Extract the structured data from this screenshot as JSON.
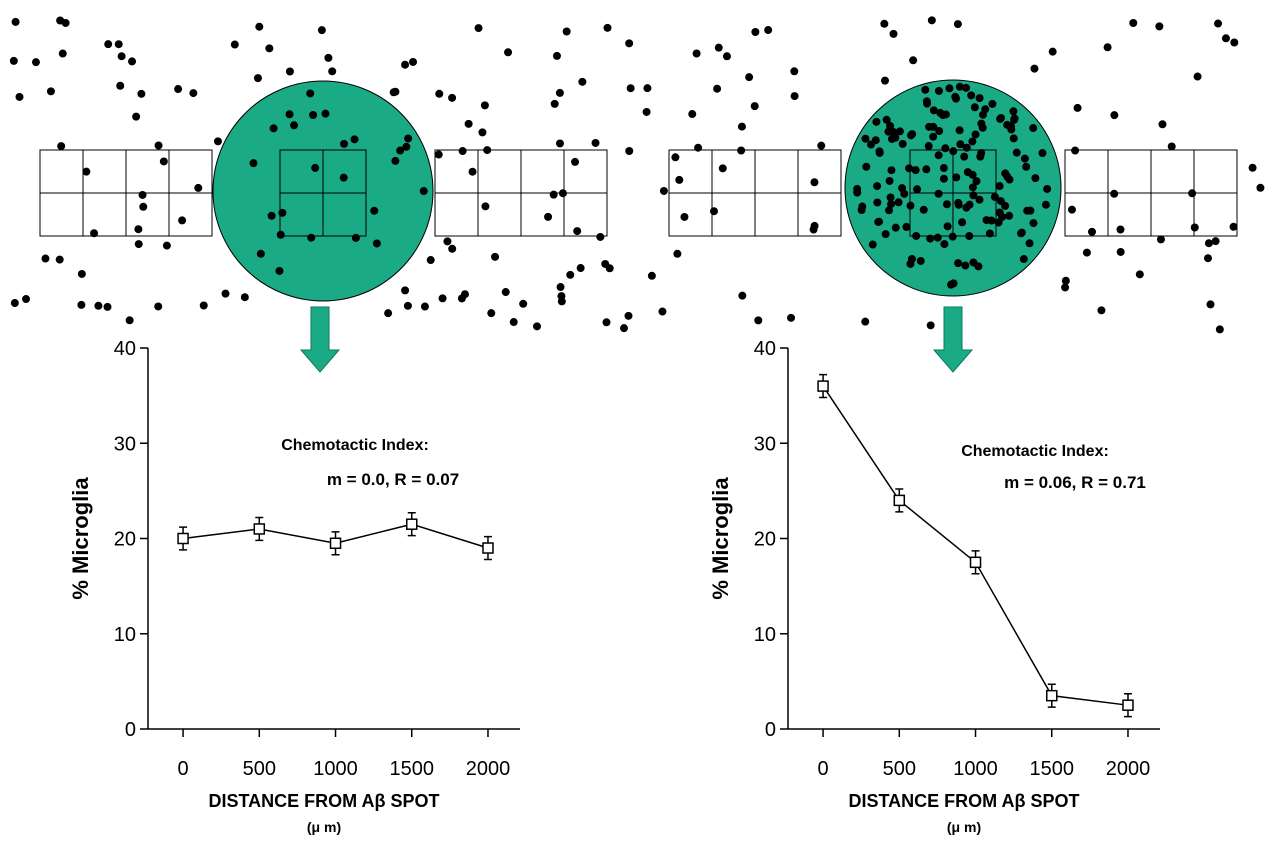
{
  "chart_data": [
    {
      "type": "line",
      "y_label": "% Microglia",
      "x_label": "DISTANCE FROM Aβ SPOT",
      "x_unit": "(μ m)",
      "annotation": [
        "Chemotactic Index:",
        "m = 0.0, R = 0.07"
      ],
      "x": [
        0,
        500,
        1000,
        1500,
        2000
      ],
      "values": [
        20,
        21,
        19.5,
        21.5,
        19
      ],
      "errors": [
        1.2,
        1.2,
        1.2,
        1.2,
        1.2
      ],
      "color": "#000000",
      "xlim": [
        -230,
        2210
      ],
      "xticks": [
        0,
        500,
        1000,
        1500,
        2000
      ],
      "ylim": [
        0,
        40
      ],
      "yticks": [
        0,
        10,
        20,
        30,
        40
      ]
    },
    {
      "type": "line",
      "y_label": "% Microglia",
      "x_label": "DISTANCE FROM Aβ SPOT",
      "x_unit": "(μ m)",
      "annotation": [
        "Chemotactic Index:",
        "m = 0.06, R = 0.71"
      ],
      "x": [
        0,
        500,
        1000,
        1500,
        2000
      ],
      "values": [
        36,
        24,
        17.5,
        3.5,
        2.5
      ],
      "errors": [
        1.2,
        1.2,
        1.2,
        1.2,
        1.2
      ],
      "color": "#000000",
      "xlim": [
        -230,
        2210
      ],
      "xticks": [
        0,
        500,
        1000,
        1500,
        2000
      ],
      "ylim": [
        0,
        40
      ],
      "yticks": [
        0,
        10,
        20,
        30,
        40
      ]
    }
  ]
}
